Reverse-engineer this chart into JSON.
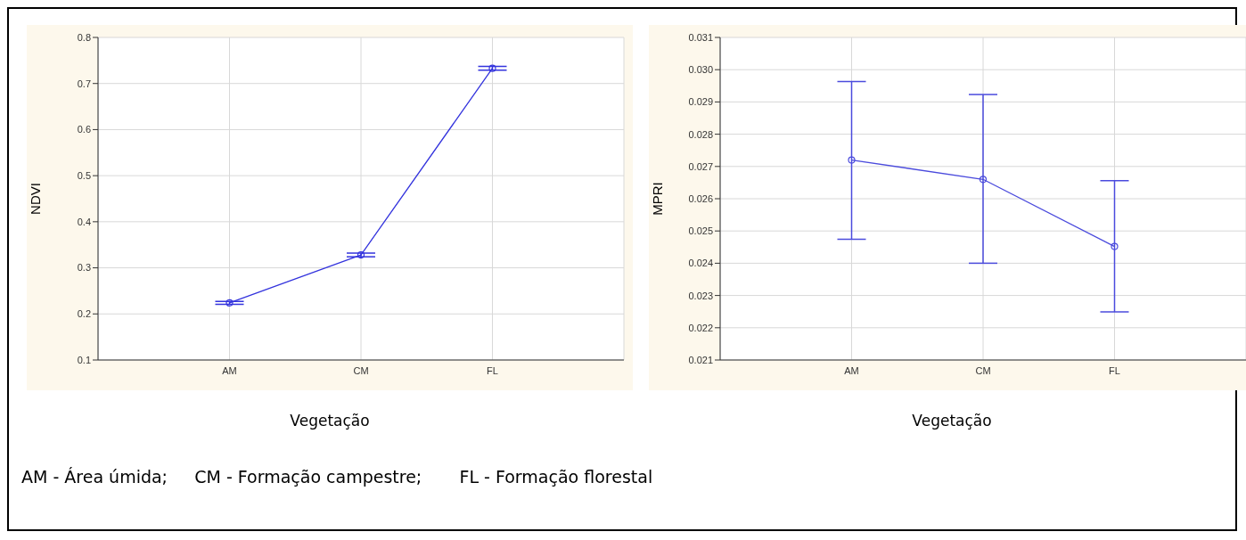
{
  "chart_data": [
    {
      "type": "line",
      "ylabel": "NDVI",
      "xlabel": "Vegetação",
      "categories": [
        "AM",
        "CM",
        "FL"
      ],
      "series": [
        {
          "color": "#3333dd",
          "values": [
            0.224,
            0.328,
            0.733
          ],
          "errors": [
            0.003,
            0.004,
            0.004
          ]
        }
      ],
      "ylim": [
        0.1,
        0.8
      ],
      "yticks": [
        0.1,
        0.2,
        0.3,
        0.4,
        0.5,
        0.6,
        0.7,
        0.8
      ],
      "grid": true,
      "marker": "circle",
      "line_style": "solid",
      "legend": false,
      "annotations": [
        "AM - Área úmida;     CM - Formação campestre;       FL - Formação florestal"
      ]
    },
    {
      "type": "line",
      "ylabel": "MPRI",
      "xlabel": "Vegetação",
      "categories": [
        "AM",
        "CM",
        "FL"
      ],
      "series": [
        {
          "color": "#4b4bdd",
          "values": [
            0.0272,
            0.0266,
            0.02452
          ],
          "errors": [
            [
              0.02474,
              0.02963
            ],
            [
              0.024,
              0.02923
            ],
            [
              0.02249,
              0.02656
            ]
          ]
        }
      ],
      "ylim": [
        0.021,
        0.031
      ],
      "yticks": [
        {
          "value": 0.021,
          "label": "0.021"
        },
        {
          "value": 0.022,
          "label": "0.022"
        },
        {
          "value": 0.023,
          "label": "0.023"
        },
        {
          "value": 0.024,
          "label": "0.024"
        },
        {
          "value": 0.025,
          "label": "0.025"
        },
        {
          "value": 0.026,
          "label": "0.026"
        },
        {
          "value": 0.027,
          "label": "0.027"
        },
        {
          "value": 0.028,
          "label": "0.028"
        },
        {
          "value": 0.029,
          "label": "0.029"
        },
        {
          "value": 0.03,
          "label": "0.030"
        },
        {
          "value": 0.031,
          "label": "0.031"
        }
      ],
      "grid": true,
      "marker": "circle",
      "line_style": "solid",
      "legend": false
    }
  ]
}
